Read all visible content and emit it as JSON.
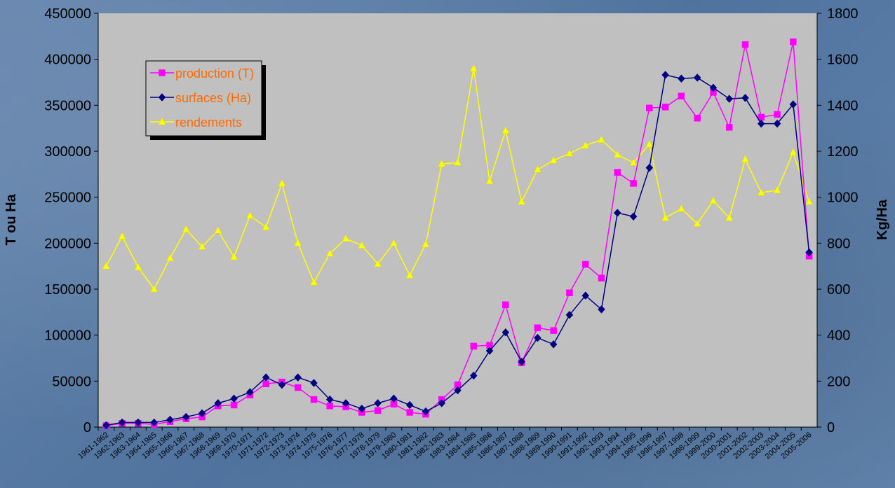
{
  "chart_data": {
    "type": "line",
    "title": "",
    "xlabel": "",
    "ylabel": "T ou Ha",
    "y2label": "Kg/Ha",
    "ylim": [
      0,
      450000
    ],
    "y2lim": [
      0,
      1800
    ],
    "yticks": [
      "0",
      "50000",
      "100000",
      "150000",
      "200000",
      "250000",
      "300000",
      "350000",
      "400000",
      "450000"
    ],
    "y2ticks": [
      "0",
      "200",
      "400",
      "600",
      "800",
      "1000",
      "1200",
      "1400",
      "1600",
      "1800"
    ],
    "grid": false,
    "legend_position": "top-left",
    "plot_background": "#c0c0c0",
    "categories": [
      "1961-1962",
      "1962-1963",
      "1963-1964",
      "1964-1965",
      "1965-1966",
      "1966-1967",
      "1967-1968",
      "1968-1969",
      "1969-1970",
      "1970-1971",
      "1971-1972",
      "1972-1973",
      "1973-1974",
      "1974-1975",
      "1975-1976",
      "1976-1977",
      "1977-1978",
      "1978-1979",
      "1979-1980",
      "1980-1981",
      "1981-1982",
      "1982-1983",
      "1983-1984",
      "1984-1985",
      "1985-1986",
      "1986-1987",
      "1987-1988",
      "1988-1989",
      "1989-1990",
      "1990-1991",
      "1991-1992",
      "1992-1993",
      "1993-1994",
      "1994-1995",
      "1995-1996",
      "1996-1997",
      "1997-1998",
      "1998-1999",
      "1999-2000",
      "2000-2001",
      "2001-2002",
      "2002-2003",
      "2003-2004",
      "2004-2005",
      "2005-2006"
    ],
    "series": [
      {
        "name": "production (T)",
        "axis": "left",
        "color": "#ff00ff",
        "marker": "square",
        "values": [
          1500,
          4000,
          4000,
          3000,
          6000,
          9000,
          11000,
          23000,
          24000,
          35000,
          47000,
          49000,
          43000,
          30000,
          23000,
          22000,
          16000,
          18000,
          25000,
          16000,
          14000,
          30000,
          46000,
          88000,
          89000,
          133000,
          70000,
          108000,
          105000,
          146000,
          177000,
          162000,
          277000,
          265000,
          347000,
          348000,
          360000,
          336000,
          364000,
          326000,
          416000,
          337000,
          340000,
          419000,
          186000
        ]
      },
      {
        "name": "surfaces (Ha)",
        "axis": "left",
        "color": "#000080",
        "marker": "diamond",
        "values": [
          2000,
          5000,
          5000,
          5000,
          8000,
          11000,
          15000,
          26000,
          31000,
          38000,
          54000,
          46000,
          54000,
          48000,
          30000,
          26000,
          20000,
          26000,
          31000,
          24000,
          17000,
          26000,
          40000,
          56000,
          83000,
          103000,
          71000,
          97000,
          90000,
          122000,
          143000,
          128000,
          233000,
          229000,
          282000,
          383000,
          379000,
          380000,
          369000,
          357000,
          358000,
          330000,
          330000,
          351000,
          190000
        ]
      },
      {
        "name": "rendements",
        "axis": "right",
        "color": "#ffff00",
        "marker": "triangle",
        "values": [
          700,
          830,
          695,
          600,
          735,
          860,
          785,
          855,
          740,
          920,
          870,
          1060,
          800,
          630,
          755,
          820,
          790,
          710,
          800,
          660,
          795,
          1145,
          1150,
          1560,
          1070,
          1290,
          980,
          1120,
          1160,
          1190,
          1225,
          1250,
          1185,
          1150,
          1230,
          910,
          950,
          885,
          985,
          910,
          1165,
          1020,
          1030,
          1195,
          980
        ]
      }
    ]
  }
}
